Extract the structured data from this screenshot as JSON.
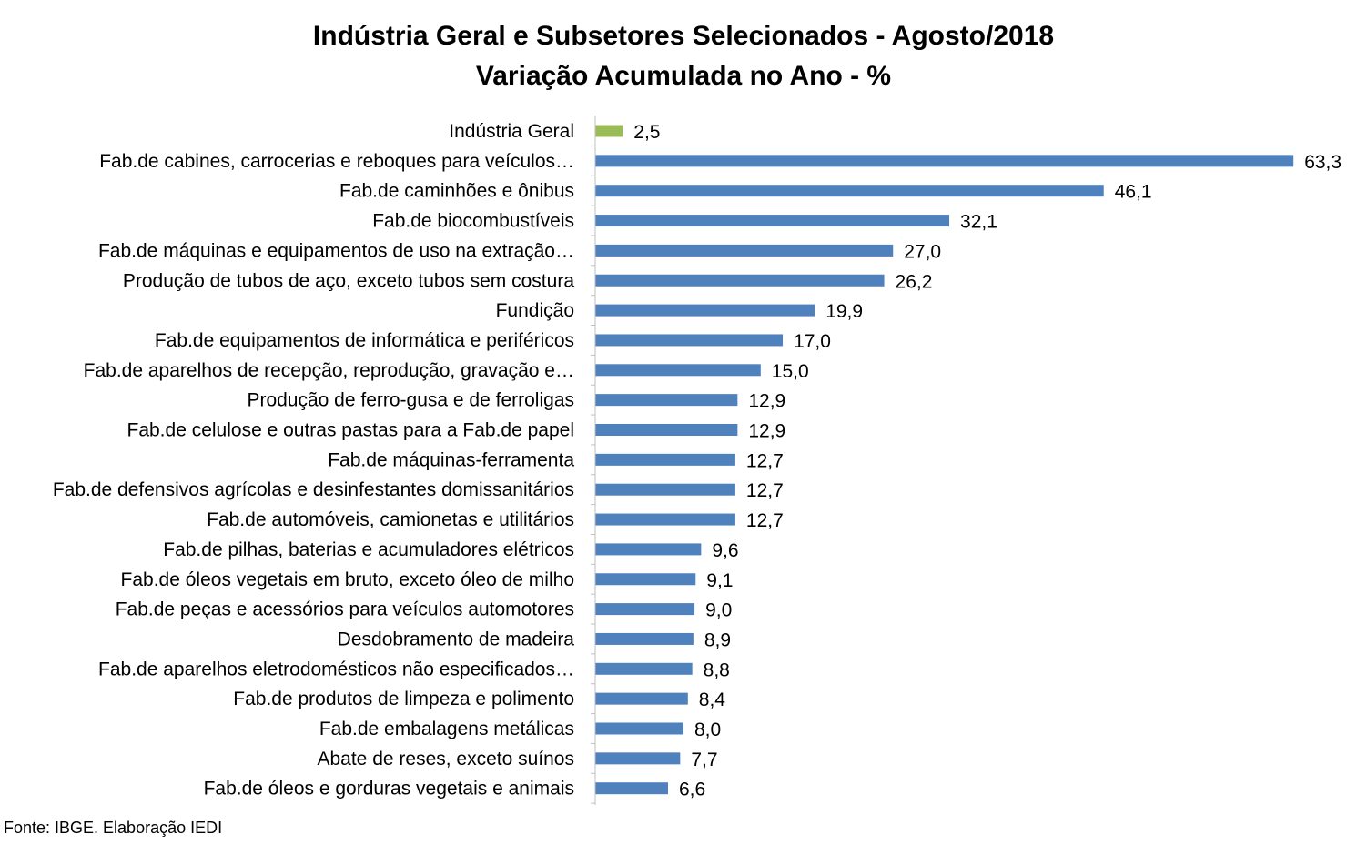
{
  "colors": {
    "highlight": "#9BBB59",
    "bar": "#4F81BD",
    "axis": "#BFBFBF"
  },
  "chart_data": {
    "type": "bar",
    "orientation": "horizontal",
    "title": "Indústria Geral e Subsetores Selecionados - Agosto/2018",
    "subtitle": "Variação Acumulada no Ano - %",
    "xlim": [
      0,
      70
    ],
    "grid": false,
    "legend": "none",
    "categories": [
      "Indústria Geral",
      "Fab.de cabines, carrocerias e reboques para veículos…",
      "Fab.de caminhões e ônibus",
      "Fab.de biocombustíveis",
      "Fab.de máquinas e equipamentos de uso na extração…",
      "Produção de tubos de aço, exceto tubos sem costura",
      "Fundição",
      "Fab.de equipamentos de informática e periféricos",
      "Fab.de aparelhos de recepção, reprodução, gravação e…",
      "Produção de ferro-gusa e de ferroligas",
      "Fab.de celulose e outras pastas para a Fab.de papel",
      "Fab.de máquinas-ferramenta",
      "Fab.de defensivos agrícolas e desinfestantes domissanitários",
      "Fab.de automóveis, camionetas e utilitários",
      "Fab.de pilhas, baterias e acumuladores elétricos",
      "Fab.de óleos vegetais em bruto, exceto óleo de milho",
      "Fab.de peças e acessórios para veículos automotores",
      "Desdobramento de madeira",
      "Fab.de aparelhos eletrodomésticos não especificados…",
      "Fab.de produtos de limpeza e polimento",
      "Fab.de embalagens metálicas",
      "Abate de reses, exceto suínos",
      "Fab.de óleos e gorduras vegetais e animais"
    ],
    "values": [
      2.5,
      63.3,
      46.1,
      32.1,
      27.0,
      26.2,
      19.9,
      17.0,
      15.0,
      12.9,
      12.9,
      12.7,
      12.7,
      12.7,
      9.6,
      9.1,
      9.0,
      8.9,
      8.8,
      8.4,
      8.0,
      7.7,
      6.6
    ],
    "value_labels": [
      "2,5",
      "63,3",
      "46,1",
      "32,1",
      "27,0",
      "26,2",
      "19,9",
      "17,0",
      "15,0",
      "12,9",
      "12,9",
      "12,7",
      "12,7",
      "12,7",
      "9,6",
      "9,1",
      "9,0",
      "8,9",
      "8,8",
      "8,4",
      "8,0",
      "7,7",
      "6,6"
    ]
  },
  "source": "Fonte: IBGE. Elaboração IEDI"
}
